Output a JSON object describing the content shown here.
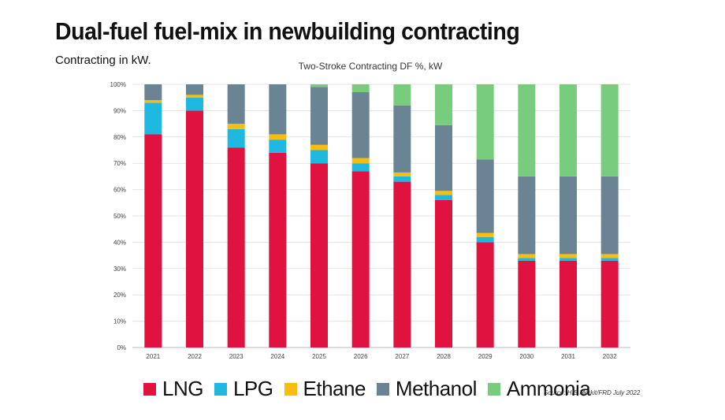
{
  "header": {
    "title": "Dual-fuel fuel-mix in newbuilding contracting",
    "subtitle": "Contracting in kW."
  },
  "source": "Source: HIS Merkit/FRD July 2022",
  "chart_data": {
    "type": "bar",
    "stacked": true,
    "title": "Two-Stroke Contracting DF %, kW",
    "xlabel": "",
    "ylabel": "",
    "ylim": [
      0,
      100
    ],
    "y_ticks": [
      "0%",
      "10%",
      "20%",
      "30%",
      "40%",
      "50%",
      "60%",
      "70%",
      "80%",
      "90%",
      "100%"
    ],
    "grid": true,
    "legend_position": "bottom",
    "categories": [
      "2021",
      "2022",
      "2023",
      "2024",
      "2025",
      "2026",
      "2027",
      "2028",
      "2029",
      "2030",
      "2031",
      "2032"
    ],
    "series": [
      {
        "name": "LNG",
        "color": "#e0123f",
        "values": [
          81,
          90,
          76,
          74,
          70,
          67,
          63,
          56,
          40,
          33,
          33,
          33
        ]
      },
      {
        "name": "LPG",
        "color": "#1fb8e0",
        "values": [
          12,
          5,
          7,
          5,
          5,
          3,
          2,
          2,
          2,
          1,
          1,
          1
        ]
      },
      {
        "name": "Ethane",
        "color": "#f7bd10",
        "values": [
          1,
          1,
          2,
          2,
          2,
          2,
          1.5,
          1.5,
          1.5,
          1.5,
          1.5,
          1.5
        ]
      },
      {
        "name": "Methanol",
        "color": "#6a8494",
        "values": [
          6,
          4,
          15,
          19,
          22,
          25,
          25.5,
          25,
          28,
          29.5,
          29.5,
          29.5
        ]
      },
      {
        "name": "Ammonia",
        "color": "#77cd7d",
        "values": [
          0,
          0,
          0,
          0,
          1,
          3,
          8,
          15.5,
          28.5,
          35,
          35,
          35
        ]
      }
    ]
  }
}
